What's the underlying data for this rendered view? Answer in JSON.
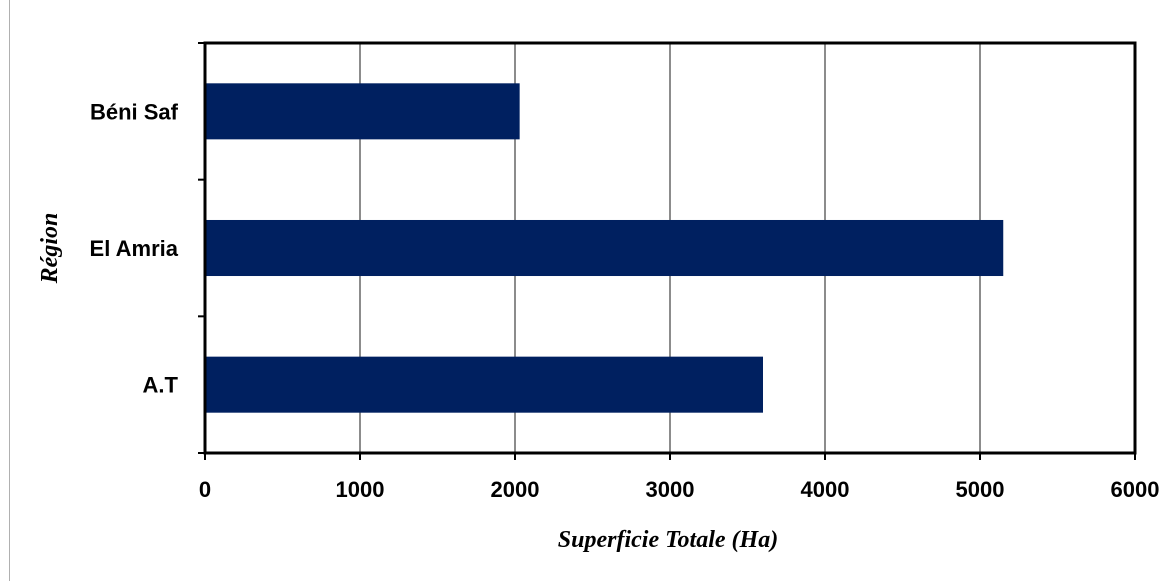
{
  "chart_data": {
    "type": "bar",
    "orientation": "horizontal",
    "categories": [
      "Béni Saf",
      "El Amria",
      "A.T"
    ],
    "values": [
      2030,
      5150,
      3600
    ],
    "xlabel": "Superficie Totale (Ha)",
    "ylabel": "Région",
    "xlim": [
      0,
      6000
    ],
    "xticks": [
      "0",
      "1000",
      "2000",
      "3000",
      "4000",
      "5000",
      "6000"
    ],
    "grid": true,
    "bar_color": "#002060"
  }
}
